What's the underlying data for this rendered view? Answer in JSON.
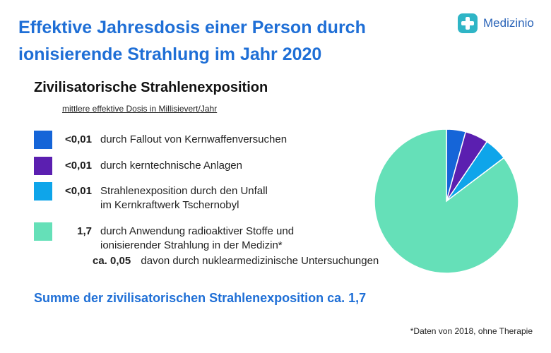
{
  "header": {
    "title": "Effektive Jahresdosis einer Person durch ionisierende Strahlung im Jahr 2020",
    "brand": "Medizinio",
    "brand_icon": "medical-cross-logo"
  },
  "colors": {
    "title_blue": "#1f6fd6",
    "brand_blue": "#2a64b8",
    "fallout": "#1565d8",
    "anlagen": "#5b1fb0",
    "tschernobyl": "#0ea5ea",
    "medizin": "#65e0b8"
  },
  "section": {
    "title": "Zivilisatorische Strahlenexposition",
    "unit_label": "mittlere effektive Dosis in Millisievert/Jahr"
  },
  "legend": [
    {
      "value": "<0,01",
      "label": "durch Fallout von Kernwaffenversuchen",
      "color": "#1565d8"
    },
    {
      "value": "<0,01",
      "label": "durch kerntechnische Anlagen",
      "color": "#5b1fb0"
    },
    {
      "value": "<0,01",
      "label_line1": "Strahlenexposition durch den Unfall",
      "label_line2": "im Kernkraftwerk Tschernobyl",
      "color": "#0ea5ea"
    },
    {
      "value": "1,7",
      "label_line1": "durch Anwendung radioaktiver Stoffe und",
      "label_line2": "ionisierender Strahlung in der Medizin*",
      "color": "#65e0b8"
    }
  ],
  "sub_item": {
    "value": "ca. 0,05",
    "label": "davon durch nuklearmedizinische Untersuchungen"
  },
  "summary": "Summe der zivilisatorischen Strahlenexposition ca. 1,7",
  "footnote": "*Daten von 2018, ohne Therapie",
  "chart_data": {
    "type": "pie",
    "title": "Zivilisatorische Strahlenexposition",
    "unit": "mittlere effektive Dosis in Millisievert/Jahr",
    "slices": [
      {
        "label": "durch Fallout von Kernwaffenversuchen",
        "value_label": "<0,01",
        "share": 0.043,
        "color": "#1565d8"
      },
      {
        "label": "durch kerntechnische Anlagen",
        "value_label": "<0,01",
        "share": 0.052,
        "color": "#5b1fb0"
      },
      {
        "label": "Strahlenexposition durch den Unfall im Kernkraftwerk Tschernobyl",
        "value_label": "<0,01",
        "share": 0.052,
        "color": "#0ea5ea"
      },
      {
        "label": "durch Anwendung radioaktiver Stoffe und ionisierender Strahlung in der Medizin*",
        "value_label": "1,7",
        "share": 0.853,
        "color": "#65e0b8"
      }
    ],
    "start_angle": "12 o'clock",
    "direction": "clockwise"
  }
}
